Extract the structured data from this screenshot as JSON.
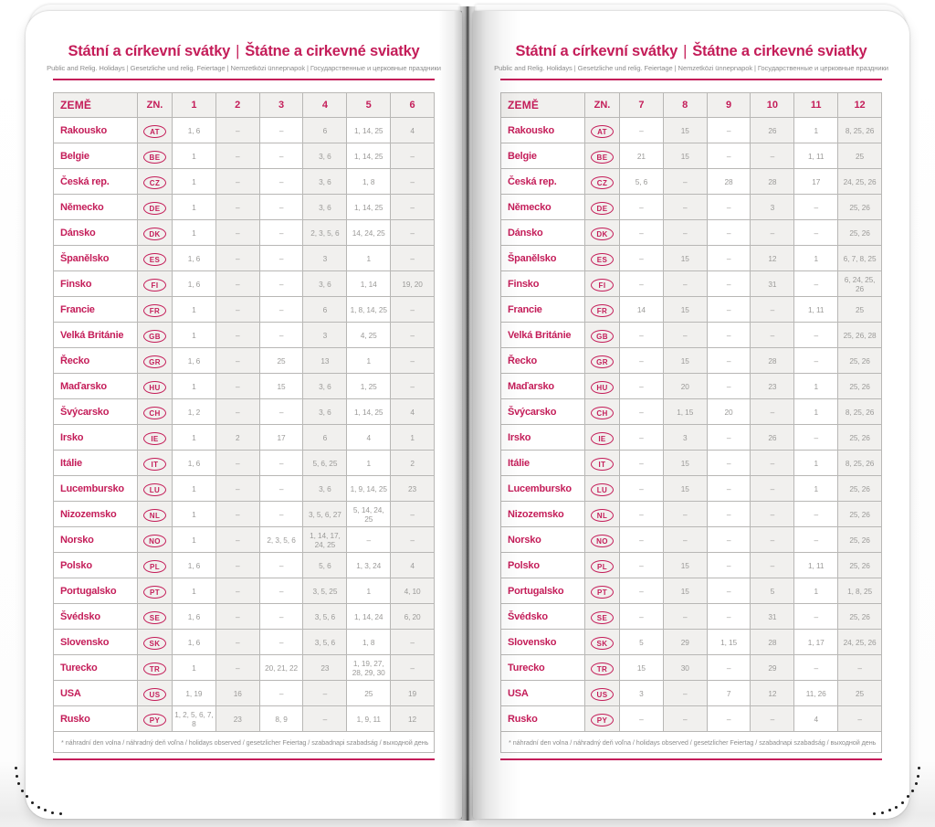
{
  "header": {
    "title_cz": "Státní a církevní svátky",
    "title_separator": "|",
    "title_sk": "Štátne a cirkevné sviatky",
    "subtitle": "Public and Relig. Holidays | Gesetzliche und relig. Feiertage | Nemzetközi ünnepnapok | Государственные и церковные праздники"
  },
  "table": {
    "country_header": "ZEMĚ",
    "code_header": "ZN.",
    "month_headers_left": [
      "1",
      "2",
      "3",
      "4",
      "5",
      "6"
    ],
    "month_headers_right": [
      "7",
      "8",
      "9",
      "10",
      "11",
      "12"
    ],
    "empty_marker": "–",
    "rows": [
      {
        "country": "Rakousko",
        "code": "AT",
        "months_1_6": [
          "1, 6",
          "–",
          "–",
          "6",
          "1, 14, 25",
          "4"
        ],
        "months_7_12": [
          "–",
          "15",
          "–",
          "26",
          "1",
          "8, 25, 26"
        ]
      },
      {
        "country": "Belgie",
        "code": "BE",
        "months_1_6": [
          "1",
          "–",
          "–",
          "3, 6",
          "1, 14, 25",
          "–"
        ],
        "months_7_12": [
          "21",
          "15",
          "–",
          "–",
          "1, 11",
          "25"
        ]
      },
      {
        "country": "Česká rep.",
        "code": "CZ",
        "months_1_6": [
          "1",
          "–",
          "–",
          "3, 6",
          "1, 8",
          "–"
        ],
        "months_7_12": [
          "5, 6",
          "–",
          "28",
          "28",
          "17",
          "24, 25, 26"
        ]
      },
      {
        "country": "Německo",
        "code": "DE",
        "months_1_6": [
          "1",
          "–",
          "–",
          "3, 6",
          "1, 14, 25",
          "–"
        ],
        "months_7_12": [
          "–",
          "–",
          "–",
          "3",
          "–",
          "25, 26"
        ]
      },
      {
        "country": "Dánsko",
        "code": "DK",
        "months_1_6": [
          "1",
          "–",
          "–",
          "2, 3, 5, 6",
          "14, 24, 25",
          "–"
        ],
        "months_7_12": [
          "–",
          "–",
          "–",
          "–",
          "–",
          "25, 26"
        ]
      },
      {
        "country": "Španělsko",
        "code": "ES",
        "months_1_6": [
          "1, 6",
          "–",
          "–",
          "3",
          "1",
          "–"
        ],
        "months_7_12": [
          "–",
          "15",
          "–",
          "12",
          "1",
          "6, 7, 8, 25"
        ]
      },
      {
        "country": "Finsko",
        "code": "FI",
        "months_1_6": [
          "1, 6",
          "–",
          "–",
          "3, 6",
          "1, 14",
          "19, 20"
        ],
        "months_7_12": [
          "–",
          "–",
          "–",
          "31",
          "–",
          "6, 24, 25, 26"
        ]
      },
      {
        "country": "Francie",
        "code": "FR",
        "months_1_6": [
          "1",
          "–",
          "–",
          "6",
          "1, 8, 14, 25",
          "–"
        ],
        "months_7_12": [
          "14",
          "15",
          "–",
          "–",
          "1, 11",
          "25"
        ]
      },
      {
        "country": "Velká Británie",
        "code": "GB",
        "months_1_6": [
          "1",
          "–",
          "–",
          "3",
          "4, 25",
          "–"
        ],
        "months_7_12": [
          "–",
          "–",
          "–",
          "–",
          "–",
          "25, 26, 28"
        ]
      },
      {
        "country": "Řecko",
        "code": "GR",
        "months_1_6": [
          "1, 6",
          "–",
          "25",
          "13",
          "1",
          "–"
        ],
        "months_7_12": [
          "–",
          "15",
          "–",
          "28",
          "–",
          "25, 26"
        ]
      },
      {
        "country": "Maďarsko",
        "code": "HU",
        "months_1_6": [
          "1",
          "–",
          "15",
          "3, 6",
          "1, 25",
          "–"
        ],
        "months_7_12": [
          "–",
          "20",
          "–",
          "23",
          "1",
          "25, 26"
        ]
      },
      {
        "country": "Švýcarsko",
        "code": "CH",
        "months_1_6": [
          "1, 2",
          "–",
          "–",
          "3, 6",
          "1, 14, 25",
          "4"
        ],
        "months_7_12": [
          "–",
          "1, 15",
          "20",
          "–",
          "1",
          "8, 25, 26"
        ]
      },
      {
        "country": "Irsko",
        "code": "IE",
        "months_1_6": [
          "1",
          "2",
          "17",
          "6",
          "4",
          "1"
        ],
        "months_7_12": [
          "–",
          "3",
          "–",
          "26",
          "–",
          "25, 26"
        ]
      },
      {
        "country": "Itálie",
        "code": "IT",
        "months_1_6": [
          "1, 6",
          "–",
          "–",
          "5, 6, 25",
          "1",
          "2"
        ],
        "months_7_12": [
          "–",
          "15",
          "–",
          "–",
          "1",
          "8, 25, 26"
        ]
      },
      {
        "country": "Lucembursko",
        "code": "LU",
        "months_1_6": [
          "1",
          "–",
          "–",
          "3, 6",
          "1, 9, 14, 25",
          "23"
        ],
        "months_7_12": [
          "–",
          "15",
          "–",
          "–",
          "1",
          "25, 26"
        ]
      },
      {
        "country": "Nizozemsko",
        "code": "NL",
        "months_1_6": [
          "1",
          "–",
          "–",
          "3, 5, 6, 27",
          "5, 14, 24, 25",
          "–"
        ],
        "months_7_12": [
          "–",
          "–",
          "–",
          "–",
          "–",
          "25, 26"
        ]
      },
      {
        "country": "Norsko",
        "code": "NO",
        "months_1_6": [
          "1",
          "–",
          "2, 3, 5, 6",
          "1, 14, 17, 24, 25",
          "–",
          "–"
        ],
        "months_7_12": [
          "–",
          "–",
          "–",
          "–",
          "–",
          "25, 26"
        ]
      },
      {
        "country": "Polsko",
        "code": "PL",
        "months_1_6": [
          "1, 6",
          "–",
          "–",
          "5, 6",
          "1, 3, 24",
          "4"
        ],
        "months_7_12": [
          "–",
          "15",
          "–",
          "–",
          "1, 11",
          "25, 26"
        ]
      },
      {
        "country": "Portugalsko",
        "code": "PT",
        "months_1_6": [
          "1",
          "–",
          "–",
          "3, 5, 25",
          "1",
          "4, 10"
        ],
        "months_7_12": [
          "–",
          "15",
          "–",
          "5",
          "1",
          "1, 8, 25"
        ]
      },
      {
        "country": "Švédsko",
        "code": "SE",
        "months_1_6": [
          "1, 6",
          "–",
          "–",
          "3, 5, 6",
          "1, 14, 24",
          "6, 20"
        ],
        "months_7_12": [
          "–",
          "–",
          "–",
          "31",
          "–",
          "25, 26"
        ]
      },
      {
        "country": "Slovensko",
        "code": "SK",
        "months_1_6": [
          "1, 6",
          "–",
          "–",
          "3, 5, 6",
          "1, 8",
          "–"
        ],
        "months_7_12": [
          "5",
          "29",
          "1, 15",
          "28",
          "1, 17",
          "24, 25, 26"
        ]
      },
      {
        "country": "Turecko",
        "code": "TR",
        "months_1_6": [
          "1",
          "–",
          "20, 21, 22",
          "23",
          "1, 19, 27, 28, 29, 30",
          "–"
        ],
        "months_7_12": [
          "15",
          "30",
          "–",
          "29",
          "–",
          "–"
        ]
      },
      {
        "country": "USA",
        "code": "US",
        "months_1_6": [
          "1, 19",
          "16",
          "–",
          "–",
          "25",
          "19"
        ],
        "months_7_12": [
          "3",
          "–",
          "7",
          "12",
          "11, 26",
          "25"
        ]
      },
      {
        "country": "Rusko",
        "code": "PY",
        "months_1_6": [
          "1, 2, 5, 6, 7, 8",
          "23",
          "8, 9",
          "–",
          "1, 9, 11",
          "12"
        ],
        "months_7_12": [
          "–",
          "–",
          "–",
          "–",
          "4",
          "–"
        ]
      }
    ]
  },
  "footnote": "* náhradní den volna / náhradný deň voľna / holidays observed / gesetzlicher Feiertag / szabadnapi szabadság / выходной день",
  "colors": {
    "accent": "#c41d59",
    "cell_text": "#9b9a98",
    "cell_alt_bg": "#f1f0ee",
    "border": "#b8b7b5"
  }
}
